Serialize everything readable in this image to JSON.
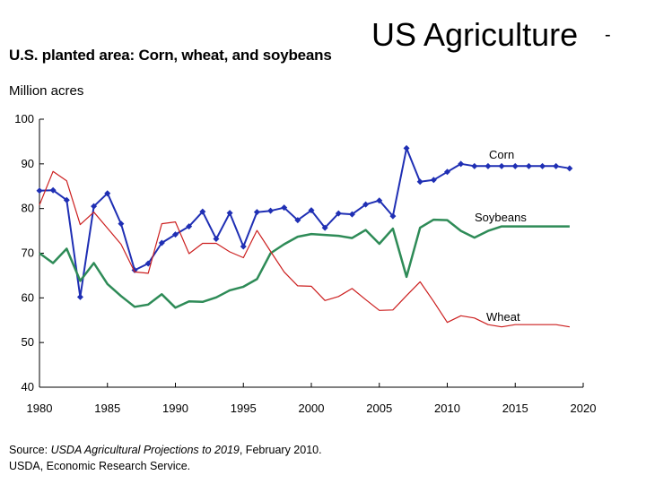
{
  "slide": {
    "title": "US Agriculture",
    "dash": "-"
  },
  "chart_data": {
    "type": "line",
    "title": "U.S. planted area: Corn, wheat, and soybeans",
    "ylabel": "Million acres",
    "xlabel": "",
    "xlim": [
      1980,
      2020
    ],
    "ylim": [
      40,
      100
    ],
    "x_ticks": [
      1980,
      1985,
      1990,
      1995,
      2000,
      2005,
      2010,
      2015,
      2020
    ],
    "y_ticks": [
      40,
      50,
      60,
      70,
      80,
      90,
      100
    ],
    "grid": false,
    "legend": "inline labels",
    "series": [
      {
        "name": "Corn",
        "color": "#1f2fb4",
        "markers": true,
        "x": [
          1980,
          1981,
          1982,
          1983,
          1984,
          1985,
          1986,
          1987,
          1988,
          1989,
          1990,
          1991,
          1992,
          1993,
          1994,
          1995,
          1996,
          1997,
          1998,
          1999,
          2000,
          2001,
          2002,
          2003,
          2004,
          2005,
          2006,
          2007,
          2008,
          2009,
          2010,
          2011,
          2012,
          2013,
          2014,
          2015,
          2016,
          2017,
          2018,
          2019
        ],
        "values": [
          84.0,
          84.1,
          81.9,
          60.2,
          80.5,
          83.4,
          76.6,
          66.2,
          67.7,
          72.3,
          74.2,
          76.0,
          79.3,
          73.2,
          79.0,
          71.5,
          79.2,
          79.5,
          80.2,
          77.4,
          79.6,
          75.7,
          78.9,
          78.7,
          80.9,
          81.8,
          78.3,
          93.5,
          86.0,
          86.4,
          88.2,
          90.0,
          89.5,
          89.5,
          89.5,
          89.5,
          89.5,
          89.5,
          89.5,
          89.0
        ]
      },
      {
        "name": "Soybeans",
        "color": "#2e8b57",
        "markers": false,
        "x": [
          1980,
          1981,
          1982,
          1983,
          1984,
          1985,
          1986,
          1987,
          1988,
          1989,
          1990,
          1991,
          1992,
          1993,
          1994,
          1995,
          1996,
          1997,
          1998,
          1999,
          2000,
          2001,
          2002,
          2003,
          2004,
          2005,
          2006,
          2007,
          2008,
          2009,
          2010,
          2011,
          2012,
          2013,
          2014,
          2015,
          2016,
          2017,
          2018,
          2019
        ],
        "values": [
          70.0,
          67.8,
          71.0,
          63.8,
          67.8,
          63.1,
          60.4,
          58.0,
          58.5,
          60.8,
          57.8,
          59.2,
          59.1,
          60.1,
          61.7,
          62.5,
          64.2,
          70.0,
          72.0,
          73.7,
          74.3,
          74.1,
          73.9,
          73.4,
          75.2,
          72.1,
          75.5,
          64.7,
          75.7,
          77.5,
          77.4,
          75.0,
          73.5,
          75.0,
          76.0,
          76.0,
          76.0,
          76.0,
          76.0,
          76.0
        ]
      },
      {
        "name": "Wheat",
        "color": "#cc1f1f",
        "markers": false,
        "x": [
          1980,
          1981,
          1982,
          1983,
          1984,
          1985,
          1986,
          1987,
          1988,
          1989,
          1990,
          1991,
          1992,
          1993,
          1994,
          1995,
          1996,
          1997,
          1998,
          1999,
          2000,
          2001,
          2002,
          2003,
          2004,
          2005,
          2006,
          2007,
          2008,
          2009,
          2010,
          2011,
          2012,
          2013,
          2014,
          2015,
          2016,
          2017,
          2018,
          2019
        ],
        "values": [
          80.8,
          88.3,
          86.2,
          76.4,
          79.2,
          75.6,
          72.0,
          65.8,
          65.5,
          76.6,
          77.0,
          69.9,
          72.2,
          72.2,
          70.3,
          69.0,
          75.1,
          70.4,
          65.8,
          62.7,
          62.6,
          59.4,
          60.3,
          62.1,
          59.6,
          57.2,
          57.3,
          60.5,
          63.6,
          59.2,
          54.5,
          56.0,
          55.5,
          54.0,
          53.5,
          54.0,
          54.0,
          54.0,
          54.0,
          53.5
        ]
      }
    ]
  },
  "source": {
    "prefix": "Source: ",
    "italic": "USDA Agricultural Projections to 2019",
    "suffix": ", February 2010.",
    "line2": "USDA, Economic Research Service."
  }
}
